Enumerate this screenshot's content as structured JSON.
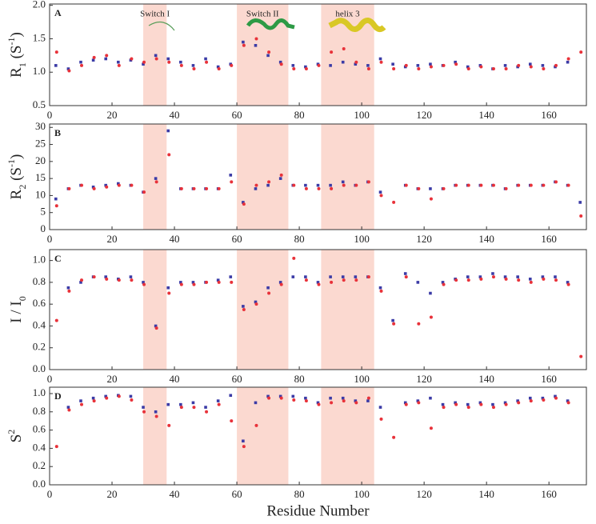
{
  "chart_data": [
    {
      "type": "scatter",
      "panel_label": "A",
      "ylabel": [
        {
          "text": "R"
        },
        {
          "text": "1",
          "shift": "sub"
        },
        {
          "text": " (S"
        },
        {
          "text": "-1",
          "shift": "super"
        },
        {
          "text": ")"
        }
      ],
      "xlim": [
        0,
        172
      ],
      "xticks": [
        0,
        20,
        40,
        60,
        80,
        100,
        120,
        140,
        160
      ],
      "ylim": [
        0.5,
        2.02
      ],
      "yticks": [
        0.5,
        {
          "value": 1.0,
          "label": "1.0"
        },
        1.5,
        {
          "value": 2.0,
          "label": "2.0"
        }
      ],
      "regions": [
        {
          "start": 30,
          "end": 37.5,
          "label": "Switch I"
        },
        {
          "start": 60,
          "end": 76.5,
          "label": "Switch II"
        },
        {
          "start": 87,
          "end": 104,
          "label": "helix 3"
        }
      ],
      "x": [
        2,
        6,
        10,
        14,
        18,
        22,
        26,
        30,
        34,
        38,
        42,
        46,
        50,
        54,
        58,
        62,
        66,
        70,
        74,
        78,
        82,
        86,
        90,
        94,
        98,
        102,
        106,
        110,
        114,
        118,
        122,
        126,
        130,
        134,
        138,
        142,
        146,
        150,
        154,
        158,
        162,
        166,
        170
      ],
      "series": [
        {
          "color": "#3b3ba6",
          "values": [
            1.1,
            1.05,
            1.15,
            1.18,
            1.2,
            1.15,
            1.18,
            1.12,
            1.25,
            1.2,
            1.15,
            1.1,
            1.2,
            1.08,
            1.12,
            1.45,
            1.4,
            1.25,
            1.15,
            1.1,
            1.08,
            1.12,
            1.1,
            1.15,
            1.12,
            1.1,
            1.2,
            1.12,
            1.08,
            1.1,
            1.12,
            1.1,
            1.15,
            1.08,
            1.1,
            1.05,
            1.1,
            1.08,
            1.12,
            1.1,
            1.08,
            1.15,
            null
          ]
        },
        {
          "color": "#e8323a",
          "values": [
            1.3,
            1.02,
            1.1,
            1.22,
            1.25,
            1.1,
            1.2,
            1.15,
            1.2,
            1.15,
            1.1,
            1.05,
            1.15,
            1.05,
            1.1,
            1.4,
            1.5,
            1.3,
            1.12,
            1.05,
            1.05,
            1.1,
            1.3,
            1.35,
            1.15,
            1.05,
            1.15,
            1.05,
            1.1,
            1.05,
            1.08,
            1.1,
            1.12,
            1.05,
            1.08,
            1.05,
            1.05,
            1.1,
            1.08,
            1.05,
            1.1,
            1.2,
            1.3
          ]
        }
      ]
    },
    {
      "type": "scatter",
      "panel_label": "B",
      "ylabel": [
        {
          "text": "R"
        },
        {
          "text": "2",
          "shift": "sub"
        },
        {
          "text": " (S"
        },
        {
          "text": "-1",
          "shift": "super"
        },
        {
          "text": ")"
        }
      ],
      "xlim": [
        0,
        172
      ],
      "xticks": [
        0,
        20,
        40,
        60,
        80,
        100,
        120,
        140,
        160
      ],
      "ylim": [
        0,
        31
      ],
      "yticks": [
        0,
        5,
        10,
        15,
        20,
        25,
        30
      ],
      "regions": [
        {
          "start": 30,
          "end": 37.5
        },
        {
          "start": 60,
          "end": 76.5
        },
        {
          "start": 87,
          "end": 104
        }
      ],
      "x": [
        2,
        6,
        10,
        14,
        18,
        22,
        26,
        30,
        34,
        38,
        42,
        46,
        50,
        54,
        58,
        62,
        66,
        70,
        74,
        78,
        82,
        86,
        90,
        94,
        98,
        102,
        106,
        110,
        114,
        118,
        122,
        126,
        130,
        134,
        138,
        142,
        146,
        150,
        154,
        158,
        162,
        166,
        170
      ],
      "series": [
        {
          "color": "#3b3ba6",
          "values": [
            9,
            12,
            13,
            12.5,
            13,
            13.5,
            13,
            11,
            15,
            29,
            12,
            12,
            12,
            12,
            16,
            8,
            12,
            13,
            15,
            13,
            13,
            13,
            13,
            14,
            13,
            14,
            11,
            null,
            13,
            12,
            12,
            12,
            13,
            13,
            13,
            13,
            12,
            13,
            13,
            13,
            14,
            13,
            8
          ]
        },
        {
          "color": "#e8323a",
          "values": [
            7,
            12,
            13,
            12,
            12.5,
            13,
            13,
            11,
            14,
            22,
            12,
            12,
            12,
            12,
            14,
            7.5,
            13,
            14,
            16,
            13,
            12,
            12,
            12,
            13,
            13,
            14,
            10,
            8,
            13,
            12,
            9,
            12,
            13,
            13,
            13,
            13,
            12,
            13,
            13,
            13,
            14,
            13,
            4
          ]
        }
      ]
    },
    {
      "type": "scatter",
      "panel_label": "C",
      "ylabel": [
        {
          "text": "I / I"
        },
        {
          "text": "0",
          "shift": "sub"
        }
      ],
      "xlim": [
        0,
        172
      ],
      "xticks": [
        0,
        20,
        40,
        60,
        80,
        100,
        120,
        140,
        160
      ],
      "ylim": [
        0,
        1.1
      ],
      "yticks": [
        {
          "value": 0,
          "label": "0.0"
        },
        0.2,
        0.4,
        0.6,
        0.8,
        {
          "value": 1.0,
          "label": "1.0"
        }
      ],
      "regions": [
        {
          "start": 30,
          "end": 37.5
        },
        {
          "start": 60,
          "end": 76.5
        },
        {
          "start": 87,
          "end": 104
        }
      ],
      "x": [
        2,
        6,
        10,
        14,
        18,
        22,
        26,
        30,
        34,
        38,
        42,
        46,
        50,
        54,
        58,
        62,
        66,
        70,
        74,
        78,
        82,
        86,
        90,
        94,
        98,
        102,
        106,
        110,
        114,
        118,
        122,
        126,
        130,
        134,
        138,
        142,
        146,
        150,
        154,
        158,
        162,
        166,
        170
      ],
      "series": [
        {
          "color": "#3b3ba6",
          "values": [
            null,
            0.75,
            0.8,
            0.85,
            0.85,
            0.83,
            0.85,
            0.8,
            0.4,
            0.75,
            0.8,
            0.8,
            0.8,
            0.82,
            0.85,
            0.58,
            0.62,
            0.75,
            0.8,
            0.85,
            0.85,
            0.8,
            0.85,
            0.85,
            0.85,
            0.85,
            0.75,
            0.45,
            0.88,
            0.8,
            0.7,
            0.8,
            0.83,
            0.85,
            0.85,
            0.88,
            0.85,
            0.85,
            0.83,
            0.85,
            0.85,
            0.8,
            null
          ]
        },
        {
          "color": "#e8323a",
          "values": [
            0.45,
            0.72,
            0.82,
            0.85,
            0.83,
            0.82,
            0.82,
            0.78,
            0.38,
            0.7,
            0.78,
            0.78,
            0.8,
            0.8,
            0.8,
            0.55,
            0.6,
            0.7,
            0.78,
            1.02,
            0.82,
            0.78,
            0.8,
            0.82,
            0.82,
            0.85,
            0.72,
            0.42,
            0.85,
            0.42,
            0.48,
            0.78,
            0.82,
            0.82,
            0.83,
            0.85,
            0.83,
            0.82,
            0.8,
            0.83,
            0.82,
            0.78,
            0.12
          ]
        }
      ]
    },
    {
      "type": "scatter",
      "panel_label": "D",
      "ylabel": [
        {
          "text": "S"
        },
        {
          "text": "2",
          "shift": "super"
        }
      ],
      "xlabel": "Residue Number",
      "xlim": [
        0,
        172
      ],
      "xticks": [
        0,
        20,
        40,
        60,
        80,
        100,
        120,
        140,
        160
      ],
      "ylim": [
        0,
        1.07
      ],
      "yticks": [
        {
          "value": 0,
          "label": "0.0"
        },
        0.2,
        0.4,
        0.6,
        0.8,
        {
          "value": 1.0,
          "label": "1.0"
        }
      ],
      "regions": [
        {
          "start": 30,
          "end": 37.5
        },
        {
          "start": 60,
          "end": 76.5
        },
        {
          "start": 87,
          "end": 104
        }
      ],
      "x": [
        2,
        6,
        10,
        14,
        18,
        22,
        26,
        30,
        34,
        38,
        42,
        46,
        50,
        54,
        58,
        62,
        66,
        70,
        74,
        78,
        82,
        86,
        90,
        94,
        98,
        102,
        106,
        110,
        114,
        118,
        122,
        126,
        130,
        134,
        138,
        142,
        146,
        150,
        154,
        158,
        162,
        166,
        170
      ],
      "series": [
        {
          "color": "#3b3ba6",
          "values": [
            null,
            0.85,
            0.92,
            0.95,
            0.97,
            0.98,
            0.97,
            0.85,
            0.8,
            0.88,
            0.88,
            0.9,
            0.85,
            0.92,
            0.98,
            0.48,
            0.9,
            0.97,
            0.97,
            0.97,
            0.95,
            0.9,
            0.95,
            0.95,
            0.92,
            0.92,
            0.85,
            null,
            0.9,
            0.92,
            0.95,
            0.88,
            0.9,
            0.88,
            0.9,
            0.88,
            0.9,
            0.92,
            0.95,
            0.95,
            0.97,
            0.92,
            null
          ]
        },
        {
          "color": "#e8323a",
          "values": [
            0.42,
            0.82,
            0.88,
            0.92,
            0.95,
            0.97,
            0.93,
            0.8,
            0.75,
            0.65,
            0.85,
            0.85,
            0.8,
            0.88,
            0.7,
            0.42,
            0.65,
            0.95,
            0.95,
            0.93,
            0.92,
            0.88,
            0.9,
            0.92,
            0.9,
            0.95,
            0.72,
            0.52,
            0.88,
            0.9,
            0.62,
            0.85,
            0.88,
            0.85,
            0.88,
            0.85,
            0.88,
            0.9,
            0.92,
            0.93,
            0.95,
            0.9,
            null
          ]
        }
      ]
    }
  ]
}
